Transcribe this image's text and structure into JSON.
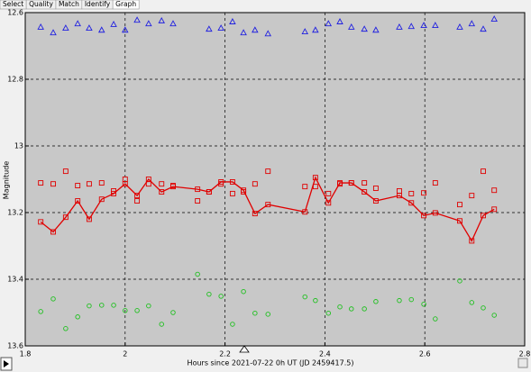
{
  "tabs": [
    "Select",
    "Quality",
    "Match",
    "Identify",
    "Graph"
  ],
  "active_tab": 4,
  "chart_data": {
    "type": "scatter",
    "x_label": "Hours since 2021-07-22 0h UT (JD 2459417.5)",
    "y_label": "Magnitude",
    "x": [
      1.831,
      1.856,
      1.881,
      1.905,
      1.928,
      1.953,
      1.977,
      2.0,
      2.024,
      2.047,
      2.073,
      2.096,
      2.145,
      2.168,
      2.192,
      2.215,
      2.237,
      2.26,
      2.286,
      2.36,
      2.381,
      2.407,
      2.43,
      2.453,
      2.479,
      2.502,
      2.549,
      2.573,
      2.598,
      2.621,
      2.67,
      2.694,
      2.717,
      2.739
    ],
    "series": [
      {
        "color": "#2020e0",
        "marker": "triangle",
        "line": false,
        "values": [
          12.643,
          12.66,
          12.646,
          12.633,
          12.646,
          12.652,
          12.635,
          12.652,
          12.622,
          12.633,
          12.624,
          12.633,
          null,
          12.649,
          12.646,
          12.627,
          12.66,
          12.652,
          12.663,
          12.657,
          12.652,
          12.633,
          12.627,
          12.643,
          12.649,
          12.652,
          12.643,
          12.641,
          12.638,
          12.638,
          12.643,
          12.633,
          12.649,
          12.619
        ]
      },
      {
        "color": "#e00000",
        "marker": "square",
        "line": false,
        "values": [
          13.111,
          13.114,
          13.076,
          13.119,
          13.114,
          13.111,
          13.135,
          13.1,
          13.165,
          13.114,
          13.114,
          13.119,
          13.165,
          13.138,
          13.114,
          13.143,
          13.138,
          13.114,
          13.076,
          13.122,
          13.122,
          13.143,
          13.114,
          13.111,
          13.111,
          13.127,
          13.135,
          13.143,
          13.141,
          13.111,
          13.176,
          13.149,
          13.076,
          13.133
        ]
      },
      {
        "color": "#e00000",
        "marker": "square",
        "line": true,
        "values": [
          13.228,
          13.258,
          13.214,
          13.165,
          13.22,
          13.16,
          13.143,
          13.114,
          13.149,
          13.1,
          13.138,
          13.122,
          13.13,
          13.138,
          13.108,
          13.108,
          13.133,
          13.203,
          13.176,
          13.198,
          13.095,
          13.171,
          13.111,
          13.111,
          13.138,
          13.165,
          13.149,
          13.171,
          13.209,
          13.201,
          13.225,
          13.285,
          13.209,
          13.19
        ]
      },
      {
        "color": "#20c020",
        "marker": "circle",
        "line": false,
        "values": [
          13.497,
          13.459,
          13.548,
          13.513,
          13.48,
          13.478,
          13.478,
          13.494,
          13.494,
          13.48,
          13.535,
          13.5,
          13.385,
          13.445,
          13.451,
          13.535,
          13.437,
          13.502,
          13.505,
          13.453,
          13.464,
          13.502,
          13.483,
          13.489,
          13.489,
          13.467,
          13.464,
          13.461,
          13.475,
          13.519,
          13.405,
          13.47,
          13.486,
          13.508
        ]
      }
    ],
    "xlim": [
      1.8,
      2.8
    ],
    "xticks": [
      1.8,
      2,
      2.2,
      2.4,
      2.6,
      2.8
    ],
    "ylim": [
      12.6,
      13.6
    ],
    "yticks": [
      12.6,
      12.8,
      13,
      13.2,
      13.4,
      13.6
    ],
    "y_inverted": true,
    "grid": true
  }
}
